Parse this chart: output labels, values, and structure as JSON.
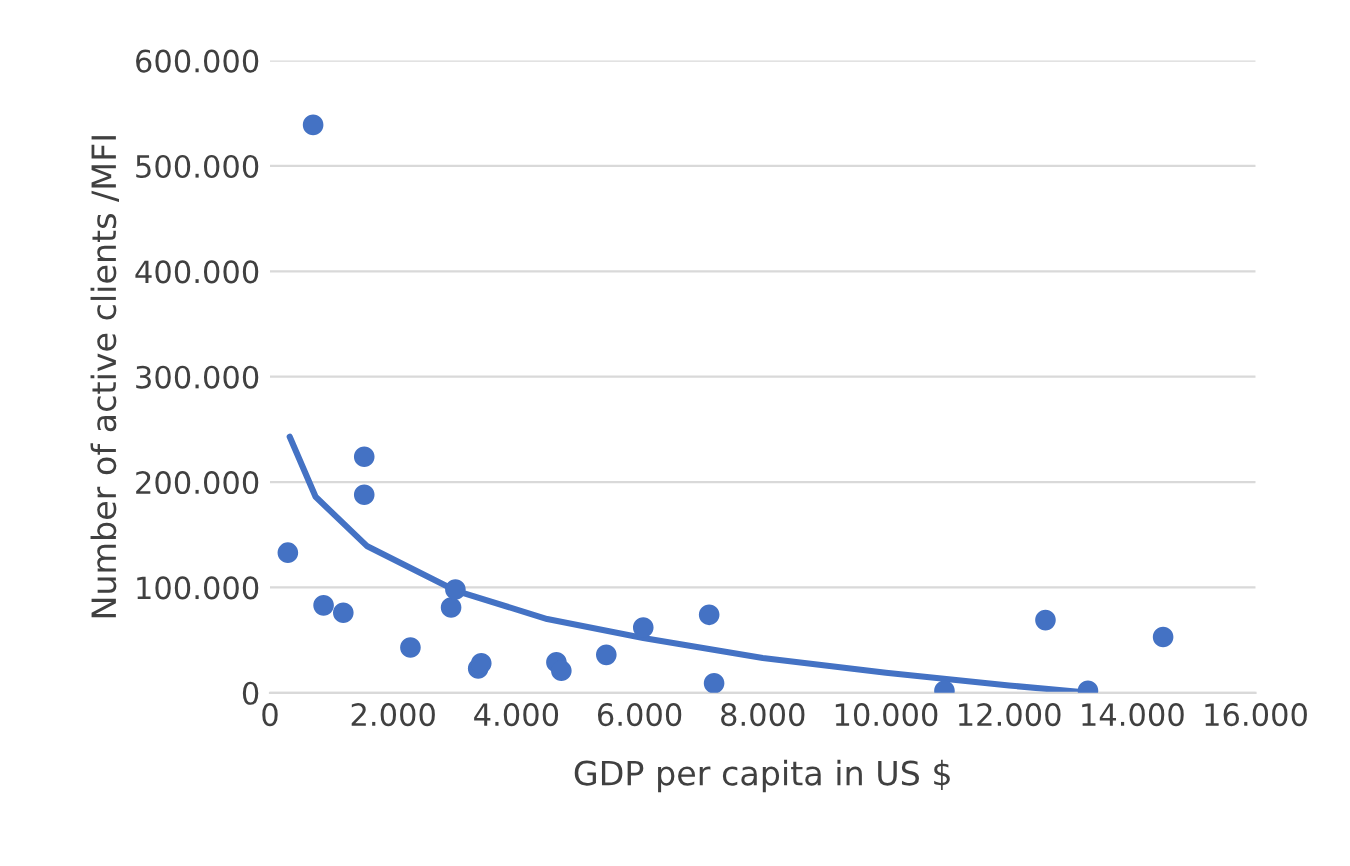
{
  "chart_data": {
    "type": "scatter",
    "xlabel": "GDP per capita in US $",
    "ylabel": "Number of active clients /MFI",
    "series": [
      {
        "color": "#4472c4",
        "marker": "circle",
        "x": [
          290,
          700,
          870,
          1190,
          1530,
          1530,
          2280,
          2940,
          3010,
          3380,
          3430,
          4650,
          4730,
          5460,
          6060,
          7130,
          7210,
          10950,
          12590,
          13280,
          14500
        ],
        "values": [
          133000,
          539000,
          83000,
          76000,
          224000,
          188000,
          43000,
          81000,
          98000,
          23000,
          28000,
          29000,
          21000,
          36000,
          62000,
          74000,
          9000,
          2000,
          69000,
          2000,
          53000
        ]
      },
      {
        "type": "line",
        "color": "#4472c4",
        "marker": "none",
        "x": [
          320,
          740,
          1580,
          3010,
          4500,
          6060,
          8000,
          10000,
          12000,
          13300
        ],
        "values": [
          243000,
          186000,
          139000,
          97000,
          70000,
          52000,
          33000,
          19000,
          7000,
          0
        ]
      }
    ],
    "xlim": [
      0,
      16000
    ],
    "ylim": [
      0,
      600000
    ],
    "xticks": [
      0,
      {
        "value": 2000,
        "label": "2.000"
      },
      {
        "value": 4000,
        "label": "4.000"
      },
      {
        "value": 6000,
        "label": "6.000"
      },
      {
        "value": 8000,
        "label": "8.000"
      },
      {
        "value": 10000,
        "label": "10.000"
      },
      {
        "value": 12000,
        "label": "12.000"
      },
      {
        "value": 14000,
        "label": "14.000"
      },
      {
        "value": 16000,
        "label": "16.000"
      }
    ],
    "yticks": [
      0,
      {
        "value": 100000,
        "label": "100.000"
      },
      {
        "value": 200000,
        "label": "200.000"
      },
      {
        "value": 300000,
        "label": "300.000"
      },
      {
        "value": 400000,
        "label": "400.000"
      },
      {
        "value": 500000,
        "label": "500.000"
      },
      {
        "value": 600000,
        "label": "600.000"
      }
    ],
    "grid": "y",
    "legend": false
  }
}
